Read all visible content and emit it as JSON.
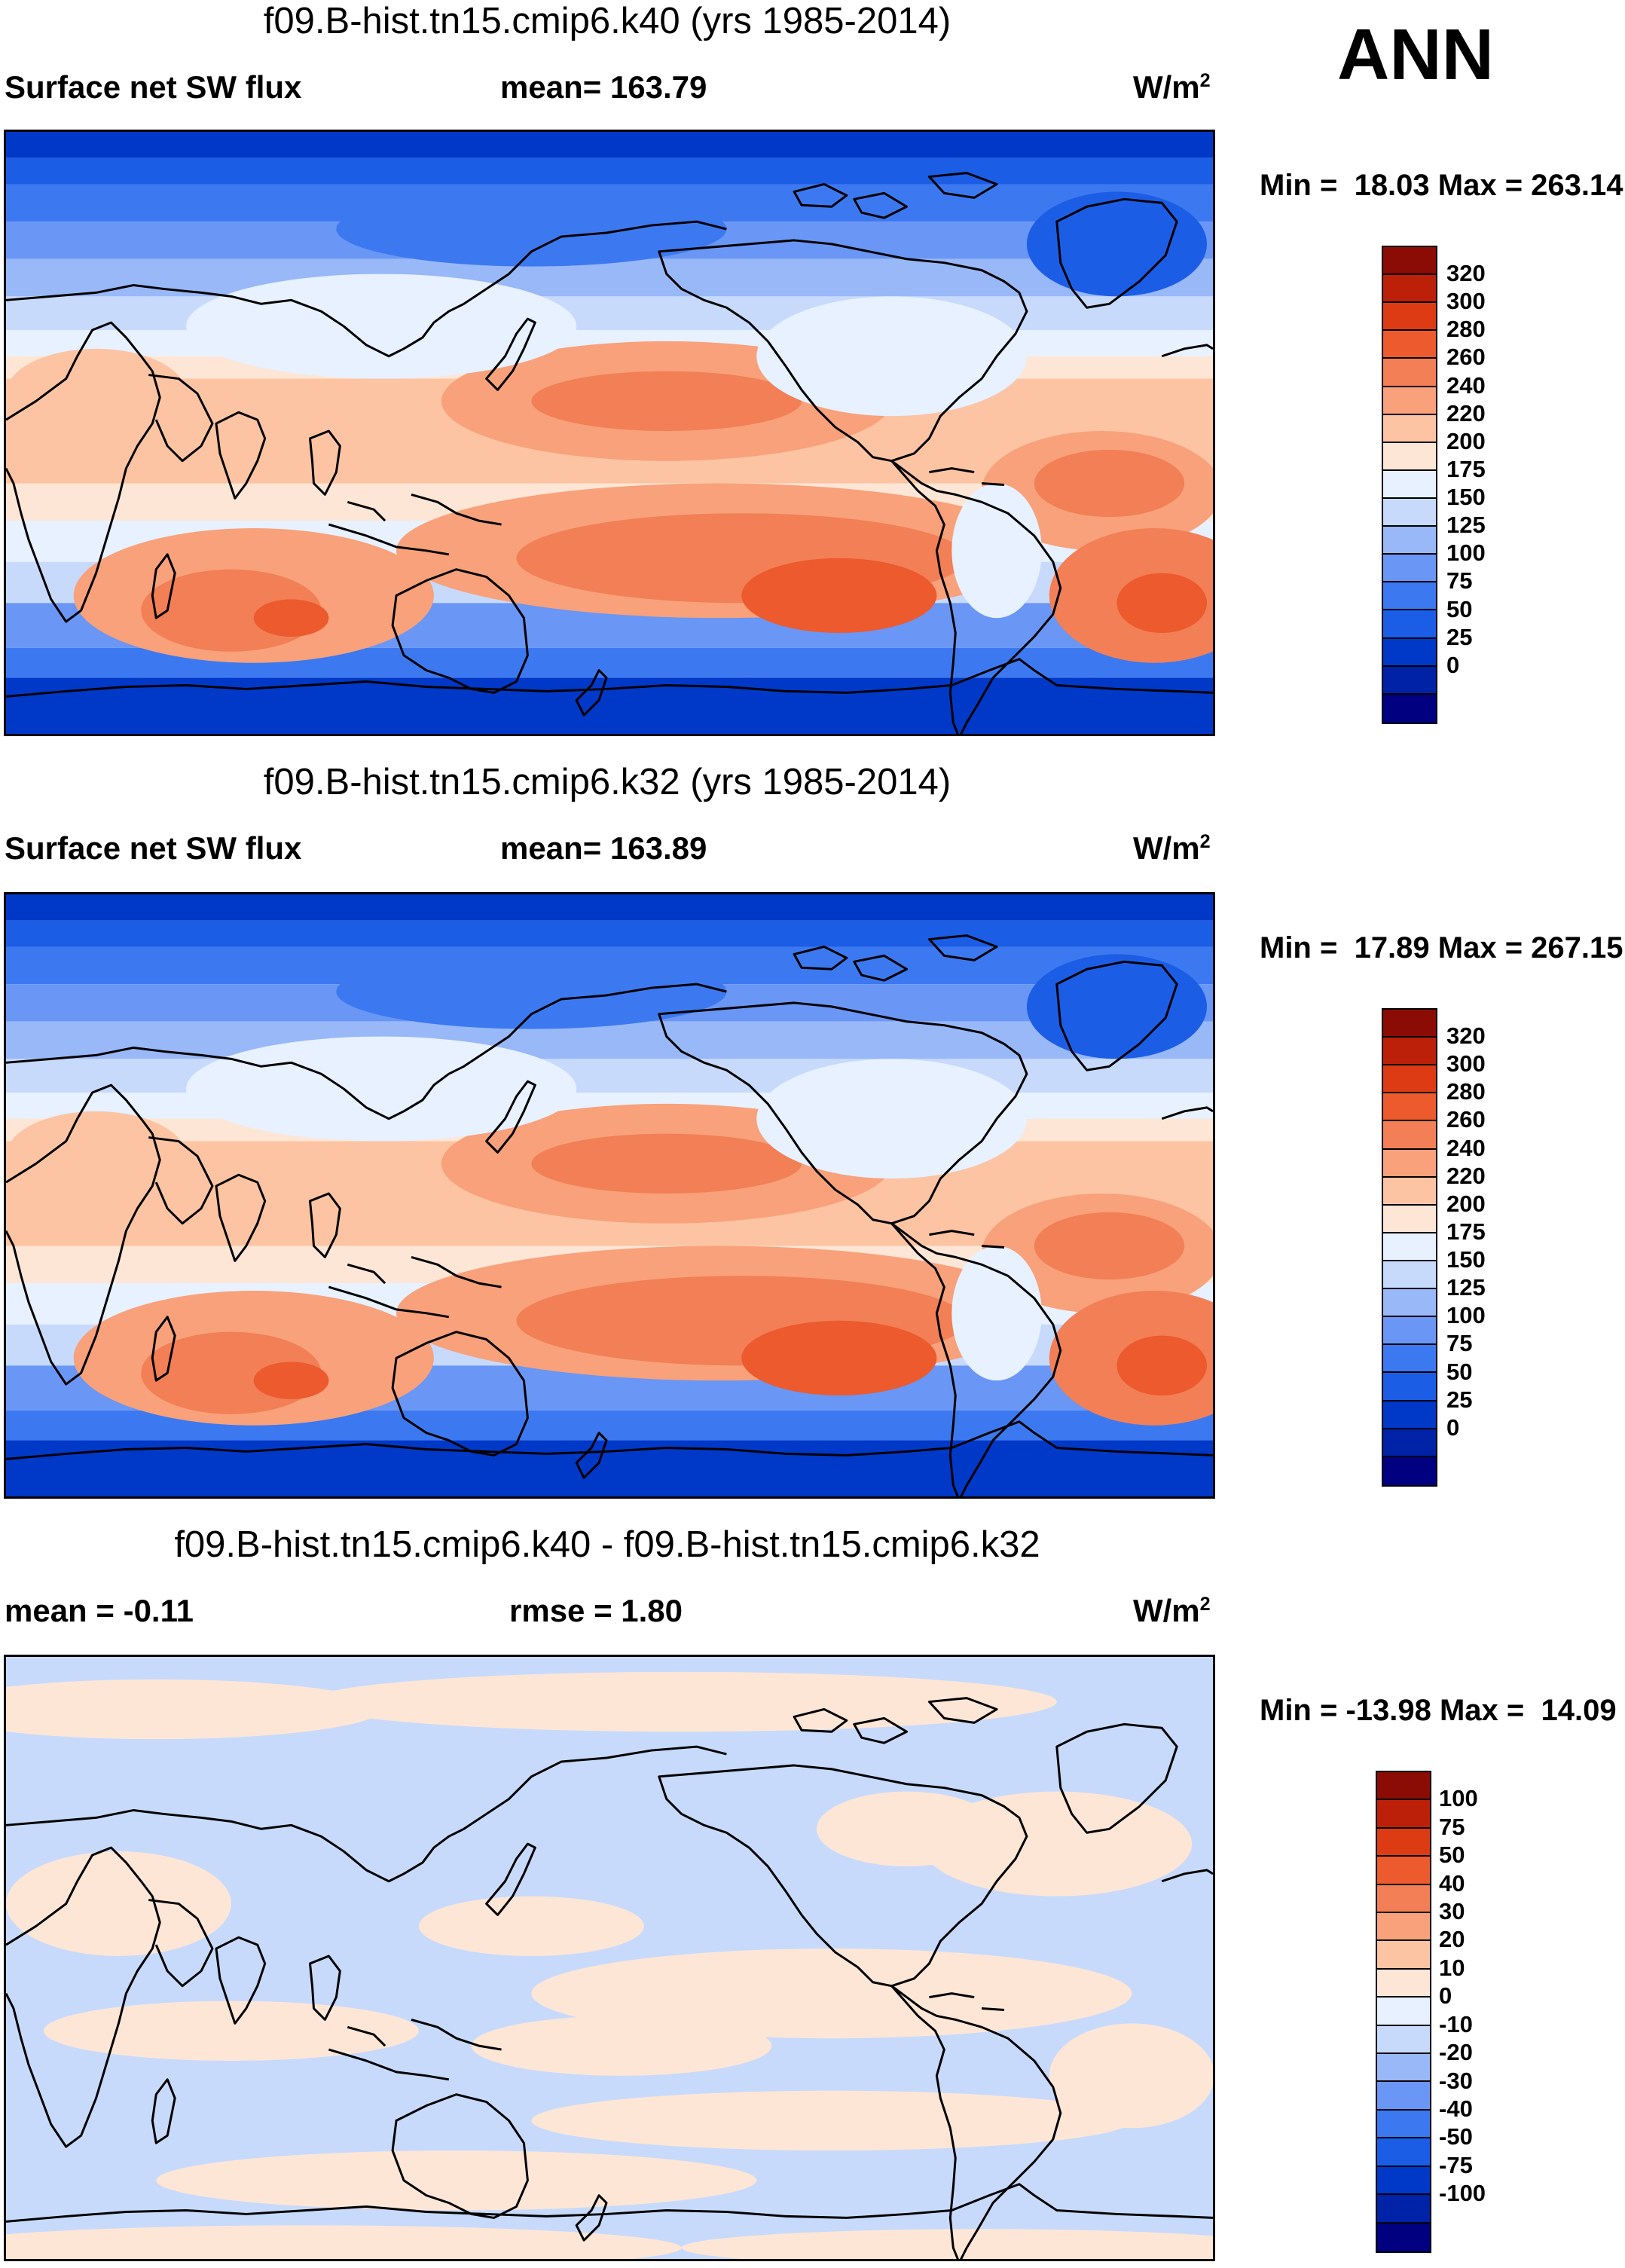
{
  "season_label": "ANN",
  "colors": {
    "diverging": [
      "#000080",
      "#0022a6",
      "#0038c8",
      "#1c5de6",
      "#3c79f0",
      "#6a96f5",
      "#98b8f8",
      "#c7dafc",
      "#e7f1ff",
      "#fde6d6",
      "#fcc4a3",
      "#f8a17a",
      "#f27f55",
      "#ec5a2e",
      "#dd3b14",
      "#bd2008",
      "#8a0c04"
    ],
    "coastline": "#000000"
  },
  "panels": [
    {
      "id": "k40",
      "title": "f09.B-hist.tn15.cmip6.k40 (yrs 1985-2014)",
      "variable": "Surface net SW flux",
      "stat_label": "mean= 163.79",
      "units_base": "W/m",
      "units_exp": "2",
      "minmax": "Min =  18.03 Max = 263.14",
      "colorbar_labels": [
        "320",
        "300",
        "280",
        "260",
        "240",
        "220",
        "200",
        "175",
        "150",
        "125",
        "100",
        "75",
        "50",
        "25",
        "0"
      ]
    },
    {
      "id": "k32",
      "title": "f09.B-hist.tn15.cmip6.k32 (yrs 1985-2014)",
      "variable": "Surface net SW flux",
      "stat_label": "mean= 163.89",
      "units_base": "W/m",
      "units_exp": "2",
      "minmax": "Min =  17.89 Max = 267.15",
      "colorbar_labels": [
        "320",
        "300",
        "280",
        "260",
        "240",
        "220",
        "200",
        "175",
        "150",
        "125",
        "100",
        "75",
        "50",
        "25",
        "0"
      ]
    },
    {
      "id": "diff",
      "title": "f09.B-hist.tn15.cmip6.k40 - f09.B-hist.tn15.cmip6.k32",
      "variable": "mean =  -0.11",
      "stat_label": "rmse =   1.80",
      "units_base": "W/m",
      "units_exp": "2",
      "minmax": "Min = -13.98 Max =  14.09",
      "colorbar_labels": [
        "100",
        "75",
        "50",
        "40",
        "30",
        "20",
        "10",
        "0",
        "-10",
        "-20",
        "-30",
        "-40",
        "-50",
        "-75",
        "-100"
      ]
    }
  ]
}
